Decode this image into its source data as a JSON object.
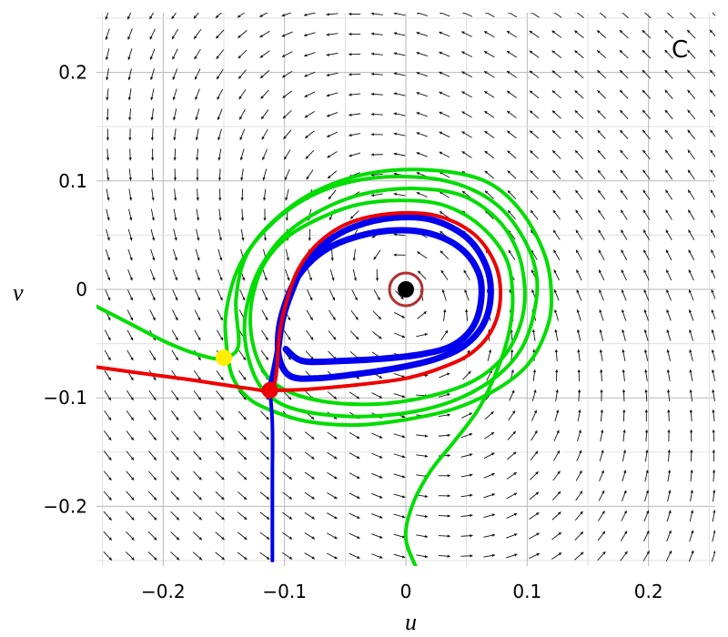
{
  "chart_data": {
    "type": "line",
    "panel_label": "C",
    "xlabel": "u",
    "ylabel": "v",
    "xlim": [
      -0.255,
      0.255
    ],
    "ylim": [
      -0.255,
      0.255
    ],
    "x_ticks": [
      -0.2,
      -0.1,
      0,
      0.1,
      0.2
    ],
    "x_tick_labels": [
      "−0.2",
      "−0.1",
      "0",
      "0.1",
      "0.2"
    ],
    "y_ticks": [
      -0.2,
      -0.1,
      0,
      0.1,
      0.2
    ],
    "y_tick_labels": [
      "−0.2",
      "−0.1",
      "0",
      "0.1",
      "0.2"
    ],
    "grid": true,
    "vector_field": true,
    "series": [
      {
        "color": "#00dd00",
        "points": [
          [
            -0.265,
            -0.01
          ],
          [
            -0.23,
            -0.03
          ],
          [
            -0.195,
            -0.05
          ],
          [
            -0.165,
            -0.062
          ],
          [
            -0.15,
            -0.063
          ],
          [
            -0.138,
            -0.052
          ],
          [
            -0.14,
            -0.01
          ],
          [
            -0.132,
            0.03
          ],
          [
            -0.11,
            0.062
          ],
          [
            -0.075,
            0.09
          ],
          [
            -0.03,
            0.107
          ],
          [
            0.02,
            0.11
          ],
          [
            0.065,
            0.1
          ],
          [
            0.095,
            0.072
          ],
          [
            0.115,
            0.03
          ],
          [
            0.12,
            -0.01
          ],
          [
            0.115,
            -0.04
          ],
          [
            0.1,
            -0.07
          ],
          [
            0.075,
            -0.092
          ],
          [
            0.04,
            -0.11
          ],
          [
            0.0,
            -0.12
          ],
          [
            -0.04,
            -0.125
          ],
          [
            -0.08,
            -0.122
          ],
          [
            -0.11,
            -0.112
          ],
          [
            -0.13,
            -0.1
          ],
          [
            -0.143,
            -0.08
          ],
          [
            -0.148,
            -0.05
          ],
          [
            -0.148,
            -0.02
          ],
          [
            -0.138,
            0.02
          ],
          [
            -0.118,
            0.052
          ],
          [
            -0.088,
            0.08
          ],
          [
            -0.05,
            0.098
          ],
          [
            -0.005,
            0.104
          ],
          [
            0.04,
            0.098
          ],
          [
            0.075,
            0.078
          ],
          [
            0.098,
            0.045
          ],
          [
            0.108,
            0.01
          ],
          [
            0.105,
            -0.025
          ],
          [
            0.095,
            -0.055
          ],
          [
            0.075,
            -0.08
          ],
          [
            0.045,
            -0.1
          ],
          [
            0.01,
            -0.112
          ],
          [
            -0.03,
            -0.117
          ],
          [
            -0.07,
            -0.115
          ],
          [
            -0.1,
            -0.107
          ],
          [
            -0.118,
            -0.092
          ],
          [
            -0.128,
            -0.07
          ],
          [
            -0.133,
            -0.04
          ],
          [
            -0.13,
            -0.01
          ],
          [
            -0.12,
            0.02
          ],
          [
            -0.1,
            0.05
          ],
          [
            -0.07,
            0.073
          ],
          [
            -0.035,
            0.088
          ],
          [
            0.005,
            0.093
          ],
          [
            0.045,
            0.087
          ],
          [
            0.075,
            0.065
          ],
          [
            0.092,
            0.035
          ],
          [
            0.098,
            0.0
          ],
          [
            0.095,
            -0.03
          ],
          [
            0.082,
            -0.06
          ],
          [
            0.058,
            -0.083
          ],
          [
            0.025,
            -0.097
          ],
          [
            -0.015,
            -0.105
          ],
          [
            -0.055,
            -0.105
          ],
          [
            -0.088,
            -0.098
          ],
          [
            -0.11,
            -0.085
          ],
          [
            -0.122,
            -0.065
          ],
          [
            -0.128,
            -0.035
          ],
          [
            -0.126,
            -0.005
          ],
          [
            -0.116,
            0.025
          ],
          [
            -0.098,
            0.048
          ],
          [
            -0.072,
            0.065
          ],
          [
            -0.04,
            0.078
          ],
          [
            -0.005,
            0.082
          ],
          [
            0.03,
            0.078
          ],
          [
            0.06,
            0.06
          ],
          [
            0.082,
            0.03
          ],
          [
            0.088,
            -0.005
          ],
          [
            0.085,
            -0.04
          ],
          [
            0.075,
            -0.075
          ],
          [
            0.06,
            -0.11
          ],
          [
            0.04,
            -0.14
          ],
          [
            0.02,
            -0.168
          ],
          [
            0.005,
            -0.2
          ],
          [
            0.0,
            -0.23
          ],
          [
            0.01,
            -0.26
          ]
        ]
      },
      {
        "color": "#ee0000",
        "points": [
          [
            -0.265,
            -0.07
          ],
          [
            -0.22,
            -0.077
          ],
          [
            -0.18,
            -0.083
          ],
          [
            -0.15,
            -0.088
          ],
          [
            -0.125,
            -0.092
          ],
          [
            -0.112,
            -0.093
          ],
          [
            -0.107,
            -0.08
          ],
          [
            -0.104,
            -0.04
          ],
          [
            -0.098,
            -0.01
          ],
          [
            -0.088,
            0.02
          ],
          [
            -0.07,
            0.045
          ],
          [
            -0.045,
            0.062
          ],
          [
            -0.01,
            0.07
          ],
          [
            0.025,
            0.068
          ],
          [
            0.055,
            0.052
          ],
          [
            0.073,
            0.025
          ],
          [
            0.078,
            -0.005
          ],
          [
            0.072,
            -0.035
          ],
          [
            0.055,
            -0.058
          ],
          [
            0.03,
            -0.072
          ],
          [
            0.0,
            -0.082
          ],
          [
            -0.04,
            -0.088
          ],
          [
            -0.08,
            -0.092
          ],
          [
            -0.105,
            -0.093
          ],
          [
            -0.112,
            -0.093
          ]
        ]
      },
      {
        "color": "#0000ee",
        "points": [
          [
            -0.112,
            -0.093
          ],
          [
            -0.11,
            -0.125
          ],
          [
            -0.11,
            -0.175
          ],
          [
            -0.11,
            -0.225
          ],
          [
            -0.11,
            -0.25
          ]
        ]
      },
      {
        "color": "#0000ee",
        "points": [
          [
            -0.112,
            -0.093
          ],
          [
            -0.106,
            -0.06
          ],
          [
            -0.102,
            -0.03
          ],
          [
            -0.095,
            -0.005
          ],
          [
            -0.084,
            0.022
          ],
          [
            -0.066,
            0.043
          ],
          [
            -0.042,
            0.058
          ],
          [
            -0.01,
            0.066
          ],
          [
            0.022,
            0.064
          ],
          [
            0.05,
            0.048
          ],
          [
            0.066,
            0.022
          ],
          [
            0.07,
            -0.005
          ],
          [
            0.064,
            -0.032
          ],
          [
            0.048,
            -0.052
          ],
          [
            0.025,
            -0.064
          ],
          [
            -0.005,
            -0.072
          ],
          [
            -0.04,
            -0.078
          ],
          [
            -0.075,
            -0.082
          ],
          [
            -0.095,
            -0.08
          ],
          [
            -0.104,
            -0.065
          ],
          [
            -0.105,
            -0.04
          ],
          [
            -0.1,
            -0.015
          ],
          [
            -0.09,
            0.01
          ],
          [
            -0.072,
            0.032
          ],
          [
            -0.048,
            0.046
          ],
          [
            -0.015,
            0.054
          ],
          [
            0.018,
            0.052
          ],
          [
            0.045,
            0.038
          ],
          [
            0.06,
            0.015
          ],
          [
            0.062,
            -0.01
          ],
          [
            0.055,
            -0.035
          ],
          [
            0.038,
            -0.052
          ],
          [
            0.012,
            -0.06
          ],
          [
            -0.02,
            -0.064
          ],
          [
            -0.055,
            -0.066
          ],
          [
            -0.085,
            -0.066
          ],
          [
            -0.099,
            -0.055
          ]
        ]
      }
    ],
    "points": [
      {
        "label": "",
        "x": 0.0,
        "y": 0.0,
        "color": "#000000",
        "ring_color": "#b03030"
      },
      {
        "label": "",
        "x": -0.112,
        "y": -0.093,
        "color": "#ee0000"
      },
      {
        "label": "",
        "x": -0.15,
        "y": -0.063,
        "color": "#ffee00"
      }
    ]
  }
}
